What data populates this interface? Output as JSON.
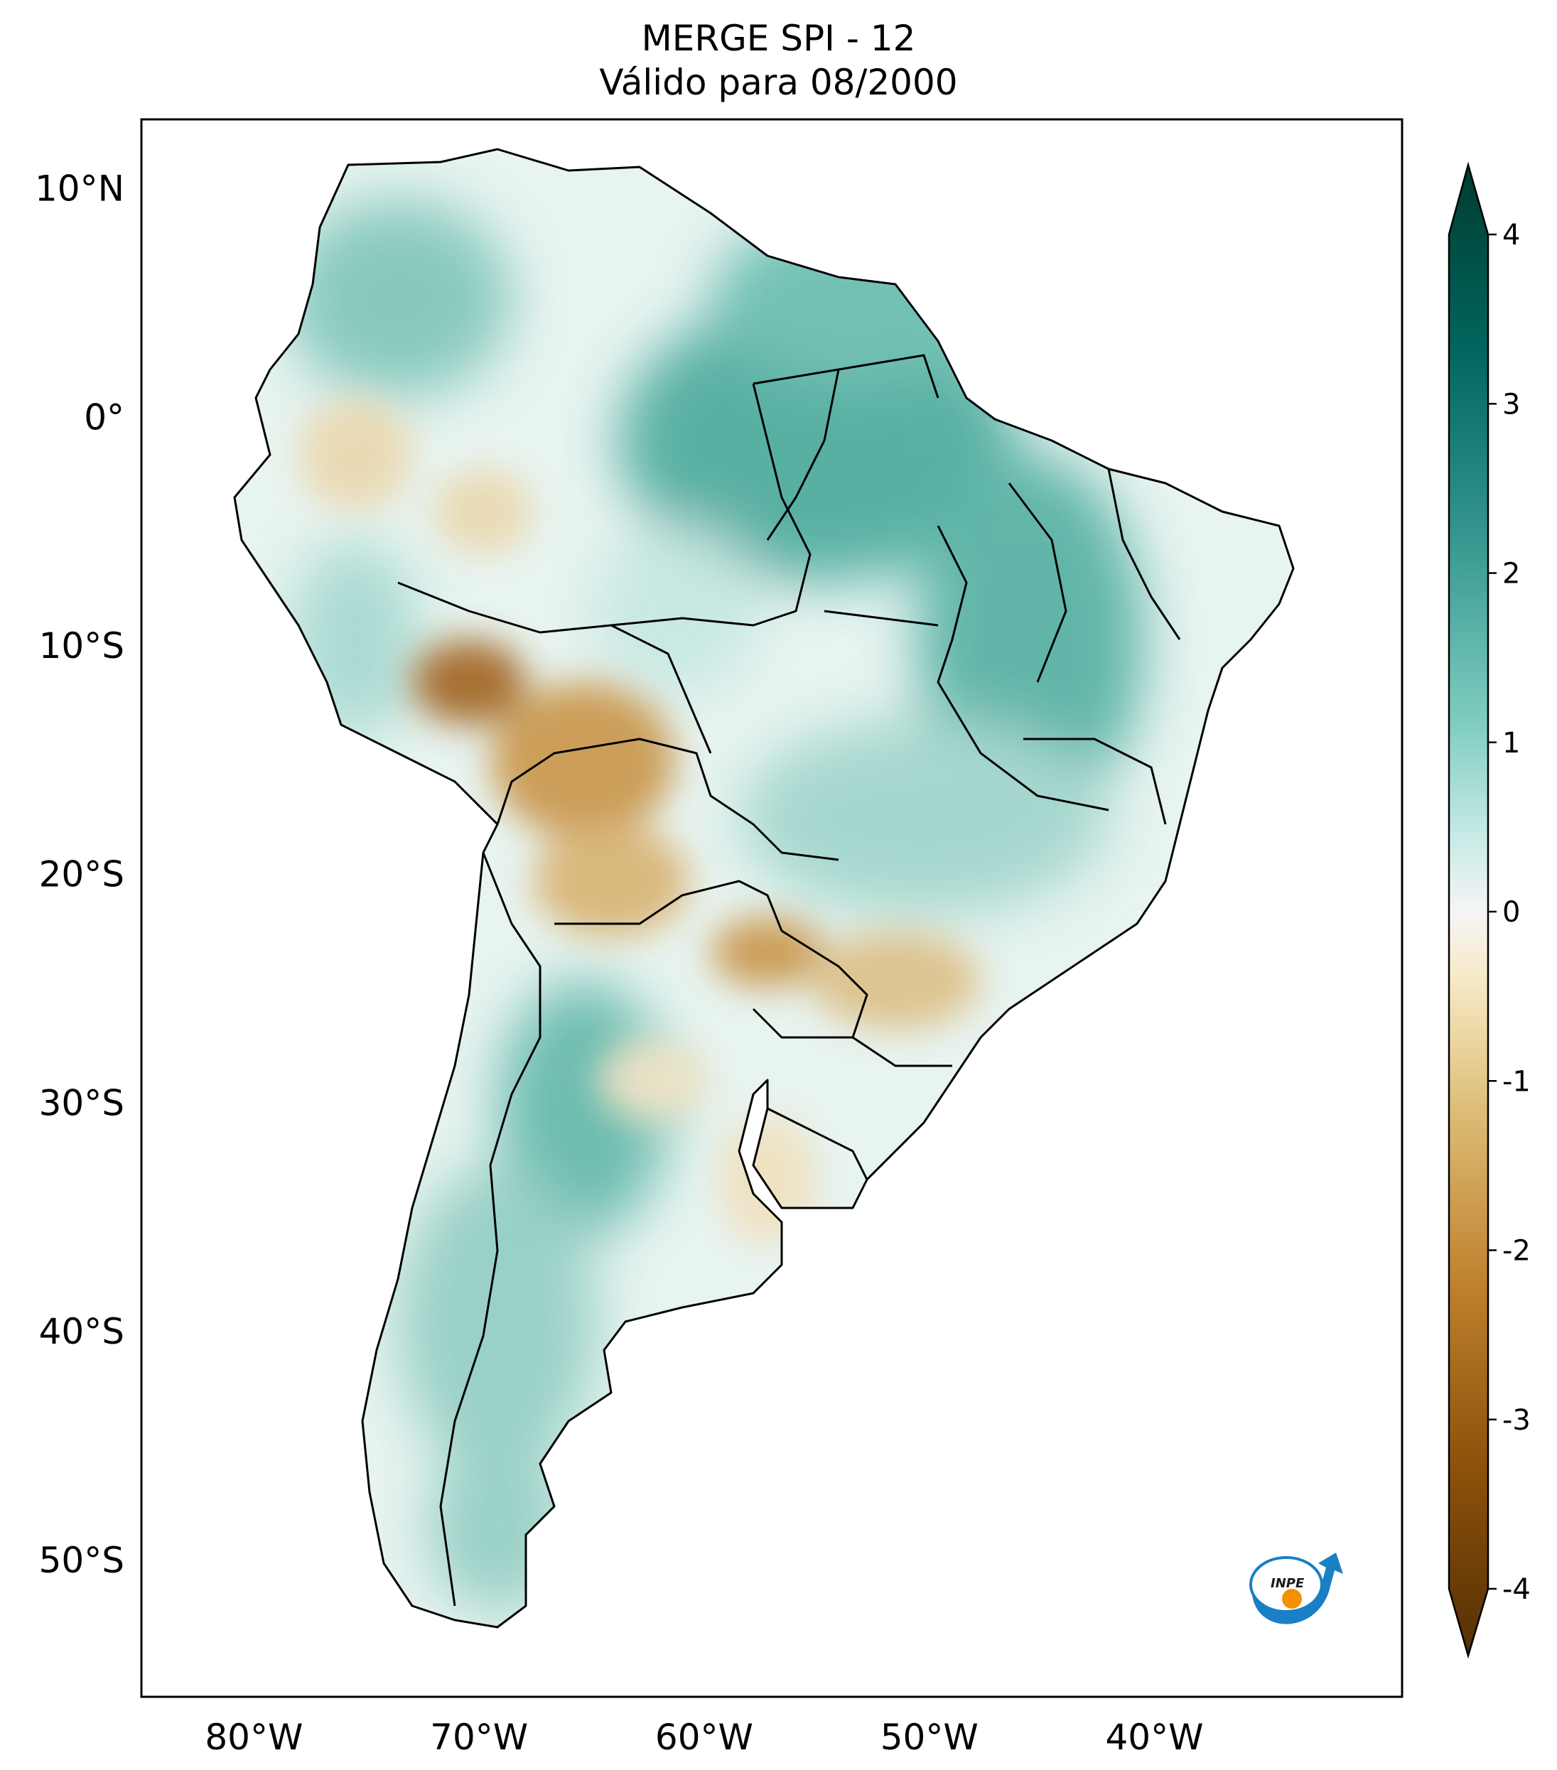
{
  "title": {
    "line1": "MERGE   SPI - 12",
    "line2": "Válido para 08/2000"
  },
  "map": {
    "lon_range": [
      -85,
      -29
    ],
    "lat_range": [
      -56,
      13
    ],
    "lat_ticks": [
      "10°N",
      "0°",
      "10°S",
      "20°S",
      "30°S",
      "40°S",
      "50°S"
    ],
    "lon_ticks": [
      "80°W",
      "70°W",
      "60°W",
      "50°W",
      "40°W"
    ],
    "dry_regions": [
      "Peru/Bolivia lowlands",
      "Paraguay/Chaco",
      "Southern Brazil (Paraná/São Paulo)",
      "Uruguay/NE Argentina"
    ],
    "wet_regions": [
      "Amazon/NE Brazil",
      "Northern Andes",
      "Guianas",
      "Patagonia",
      "Central Argentina"
    ]
  },
  "colorbar": {
    "label_values": [
      "4",
      "3",
      "2",
      "1",
      "0",
      "-1",
      "-2",
      "-3",
      "-4"
    ],
    "range": [
      -4,
      4
    ],
    "colormap": "BrBG",
    "extend": "both"
  },
  "logo": {
    "text": "INPE",
    "colors": {
      "arc": "#1a7fc4",
      "dot": "#f39200"
    }
  }
}
